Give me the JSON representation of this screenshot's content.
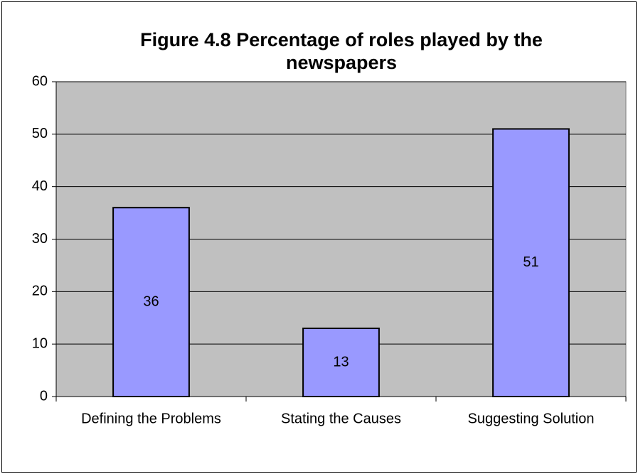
{
  "chart_data": {
    "type": "bar",
    "title": "Figure 4.8 Percentage of roles played by the newspapers",
    "categories": [
      "Defining the Problems",
      "Stating the Causes",
      "Suggesting Solution"
    ],
    "values": [
      36,
      13,
      51
    ],
    "color": "#9999ff",
    "ylim": [
      0,
      60
    ],
    "yticks": [
      0,
      10,
      20,
      30,
      40,
      50,
      60
    ],
    "grid": true
  }
}
